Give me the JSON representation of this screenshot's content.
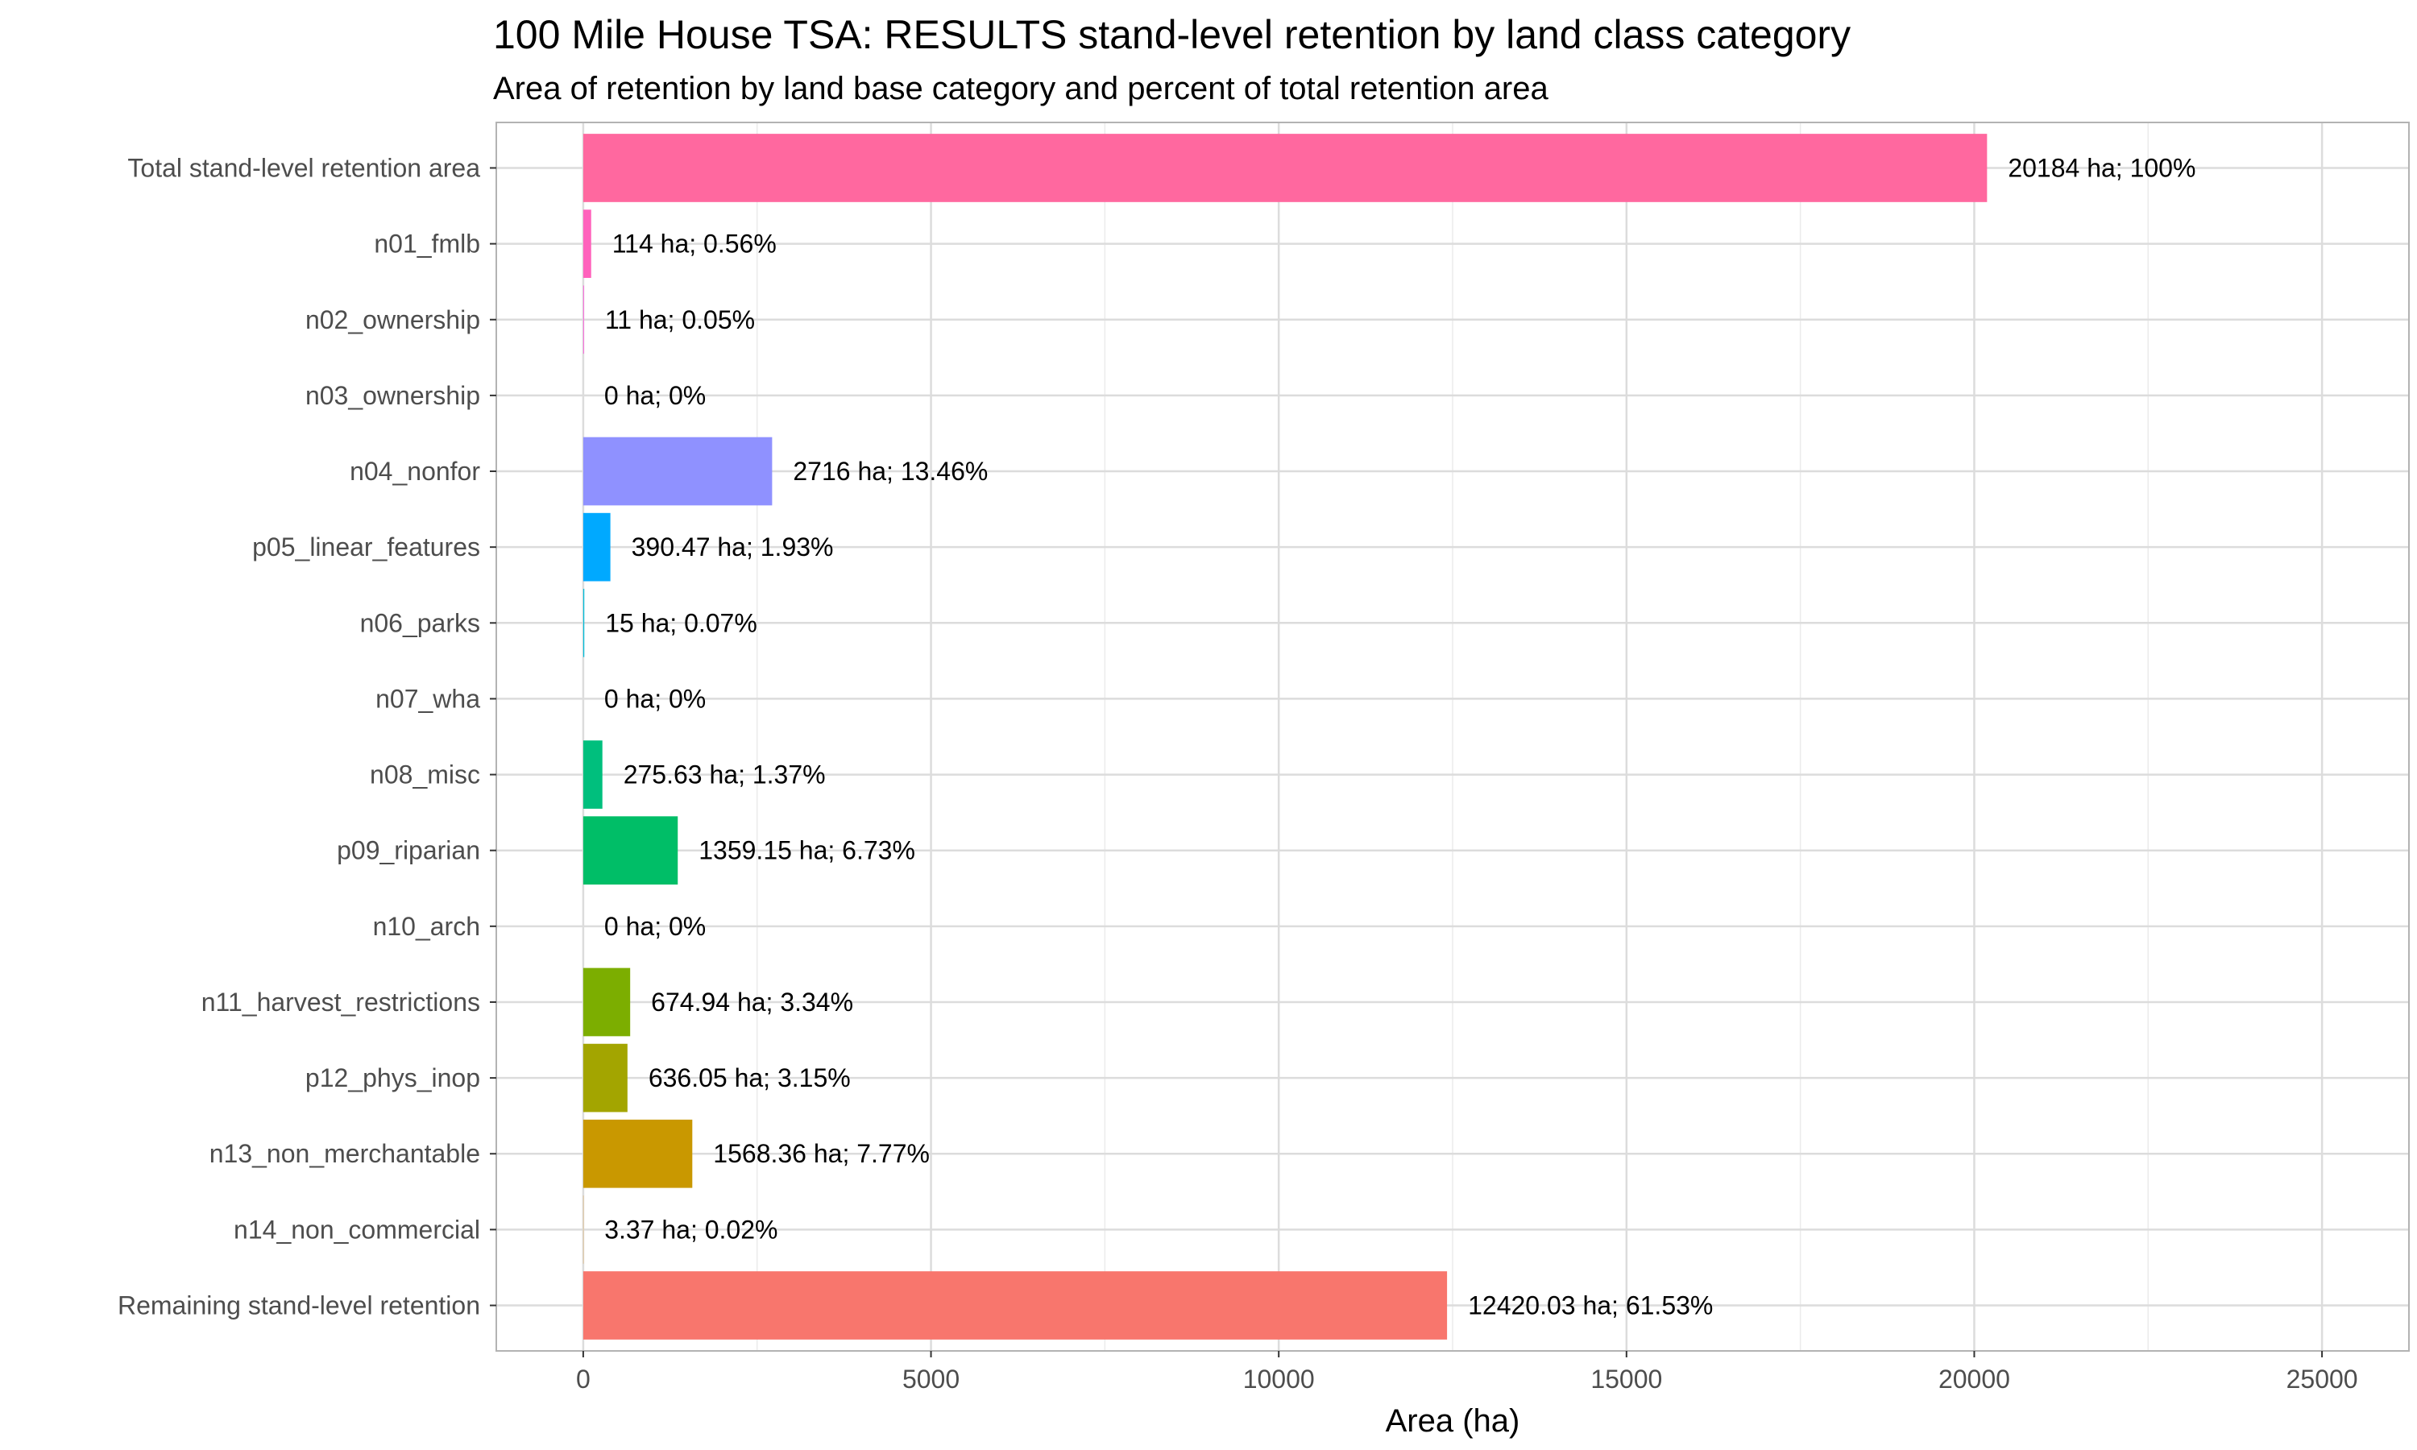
{
  "chart_data": {
    "type": "bar",
    "orientation": "horizontal",
    "title": "100 Mile House TSA: RESULTS stand-level retention by land class category",
    "subtitle": "Area of retention by land base category and percent of total retention area",
    "xlabel": "Area (ha)",
    "ylabel": "",
    "xlim": [
      -1250,
      26250
    ],
    "xticks": [
      0,
      5000,
      10000,
      15000,
      20000,
      25000
    ],
    "xtick_labels": [
      "0",
      "5000",
      "10000",
      "15000",
      "20000",
      "25000"
    ],
    "grid": true,
    "legend": "none",
    "categories": [
      "Total stand-level retention area",
      "n01_fmlb",
      "n02_ownership",
      "n03_ownership",
      "n04_nonfor",
      "p05_linear_features",
      "n06_parks",
      "n07_wha",
      "n08_misc",
      "p09_riparian",
      "n10_arch",
      "n11_harvest_restrictions",
      "p12_phys_inop",
      "n13_non_merchantable",
      "n14_non_commercial",
      "Remaining stand-level retention"
    ],
    "values": [
      20184,
      114,
      11,
      0,
      2716,
      390.47,
      15,
      0,
      275.63,
      1359.15,
      0,
      674.94,
      636.05,
      1568.36,
      3.37,
      12420.03
    ],
    "data_labels": [
      "20184 ha; 100%",
      "114 ha; 0.56%",
      "11 ha; 0.05%",
      "0 ha; 0%",
      "2716 ha; 13.46%",
      "390.47 ha; 1.93%",
      "15 ha; 0.07%",
      "0 ha; 0%",
      "275.63 ha; 1.37%",
      "1359.15 ha; 6.73%",
      "0 ha; 0%",
      "674.94 ha; 3.34%",
      "636.05 ha; 3.15%",
      "1568.36 ha; 7.77%",
      "3.37 ha; 0.02%",
      "12420.03 ha; 61.53%"
    ],
    "colors": [
      "#FF689F",
      "#FF62BC",
      "#FA62DB",
      "#E76BF3",
      "#8F91FF",
      "#00A9FF",
      "#00BCD8",
      "#00C1A7",
      "#00BF7D",
      "#00BE67",
      "#3DB70D",
      "#7CAE00",
      "#A3A500",
      "#C99800",
      "#E38900",
      "#F8766D"
    ]
  }
}
